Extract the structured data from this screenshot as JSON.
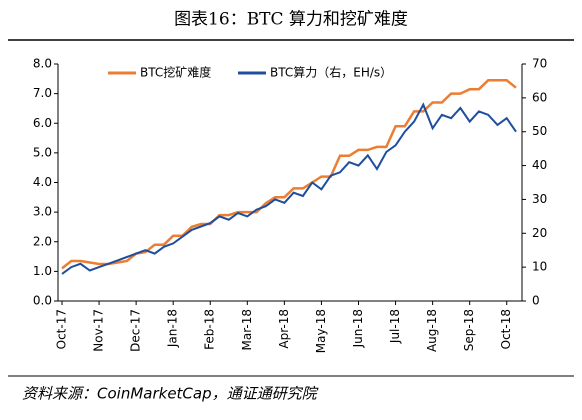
{
  "chart_data": {
    "type": "line",
    "title": "图表16：BTC 算力和挖矿难度",
    "source": "资料来源：CoinMarketCap，通证通研究院",
    "categories": [
      "Oct-17",
      null,
      null,
      null,
      "Nov-17",
      null,
      null,
      null,
      "Dec-17",
      null,
      null,
      null,
      "Jan-18",
      null,
      null,
      null,
      "Feb-18",
      null,
      null,
      null,
      "Mar-18",
      null,
      null,
      null,
      "Apr-18",
      null,
      null,
      null,
      "May-18",
      null,
      null,
      null,
      "Jun-18",
      null,
      null,
      null,
      "Jul-18",
      null,
      null,
      null,
      "Aug-18",
      null,
      null,
      null,
      "Sep-18",
      null,
      null,
      null,
      "Oct-18",
      null
    ],
    "series": [
      {
        "name": "BTC挖矿难度",
        "color": "#ED7D31",
        "values": [
          1.1,
          1.35,
          1.35,
          1.3,
          1.25,
          1.25,
          1.3,
          1.35,
          1.6,
          1.65,
          1.9,
          1.9,
          2.2,
          2.2,
          2.5,
          2.6,
          2.6,
          2.9,
          2.9,
          3.0,
          3.0,
          3.0,
          3.3,
          3.5,
          3.5,
          3.8,
          3.8,
          4.0,
          4.2,
          4.2,
          4.9,
          4.9,
          5.1,
          5.1,
          5.2,
          5.2,
          5.9,
          5.9,
          6.4,
          6.4,
          6.7,
          6.7,
          7.0,
          7.0,
          7.15,
          7.15,
          7.45,
          7.45,
          7.45,
          7.2
        ]
      },
      {
        "name": "BTC算力（右，EH/s）",
        "color": "#1F4E9E",
        "axis": "y2",
        "values": [
          8,
          10,
          11,
          9,
          10,
          11,
          12,
          13,
          14,
          15,
          14,
          16,
          17,
          19,
          21,
          22,
          23,
          25,
          24,
          26,
          25,
          27,
          28,
          30,
          29,
          32,
          31,
          35,
          33,
          37,
          38,
          41,
          40,
          43,
          39,
          44,
          46,
          50,
          53,
          58,
          51,
          55,
          54,
          57,
          53,
          56,
          55,
          52,
          54,
          50
        ]
      }
    ],
    "ylim": [
      0,
      8
    ],
    "yticks": [
      {
        "value": 0,
        "label": "0.0"
      },
      {
        "value": 1,
        "label": "1.0"
      },
      {
        "value": 2,
        "label": "2.0"
      },
      {
        "value": 3,
        "label": "3.0"
      },
      {
        "value": 4,
        "label": "4.0"
      },
      {
        "value": 5,
        "label": "5.0"
      },
      {
        "value": 6,
        "label": "6.0"
      },
      {
        "value": 7,
        "label": "7.0"
      },
      {
        "value": 8,
        "label": "8.0"
      }
    ],
    "y2lim": [
      0,
      70
    ],
    "y2ticks": [
      0,
      10,
      20,
      30,
      40,
      50,
      60,
      70
    ],
    "legend": "top"
  }
}
